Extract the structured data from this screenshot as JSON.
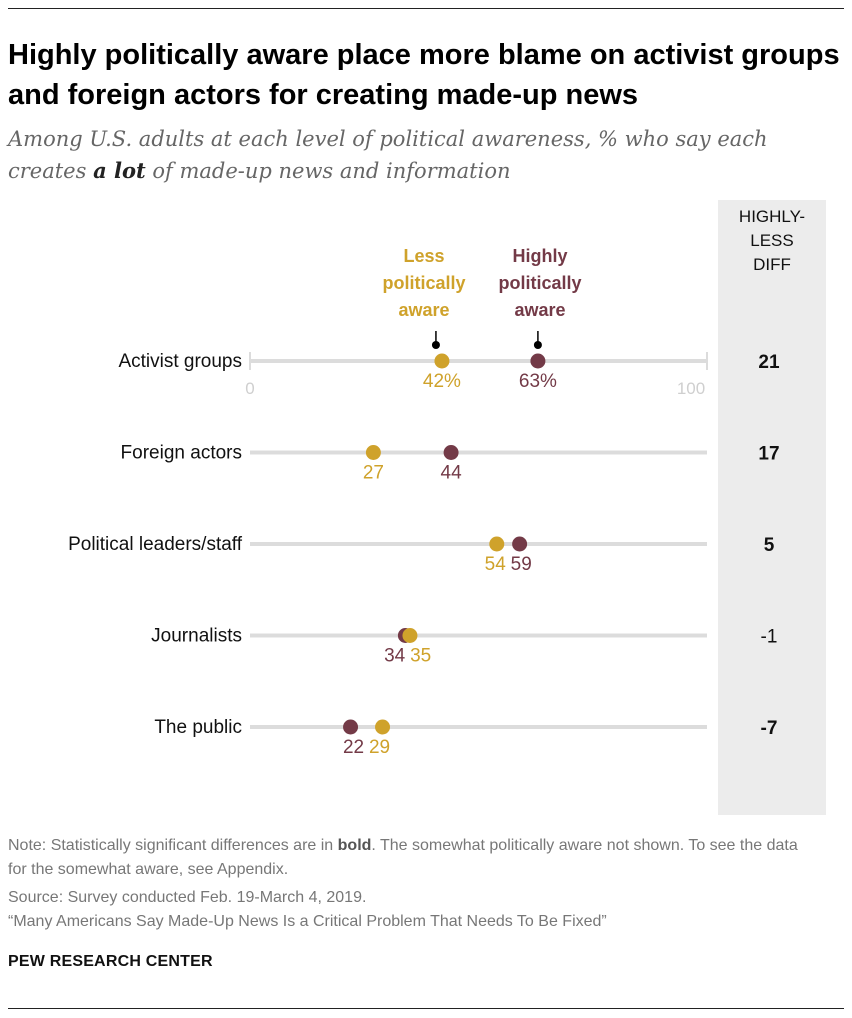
{
  "title": "Highly politically aware place more blame on activist groups and foreign actors for creating made-up news",
  "subtitle_prefix": "Among U.S. adults at each level of political awareness, % who say each creates ",
  "subtitle_emphasis": "a lot",
  "subtitle_suffix": " of made-up news and information",
  "diff_header": "HIGHLY-LESS DIFF",
  "colors": {
    "less": "#cfa22b",
    "high": "#733a47",
    "track": "#dcdcdc",
    "panel": "#ececec"
  },
  "legend": {
    "less": "Less politically aware",
    "high": "Highly politically aware"
  },
  "chart_data": {
    "type": "dot",
    "xlim": [
      0,
      100
    ],
    "axis_tick_labels": [
      "0",
      "100"
    ],
    "categories": [
      "Activist groups",
      "Foreign actors",
      "Political leaders/staff",
      "Journalists",
      "The public"
    ],
    "series": [
      {
        "name": "Less politically aware",
        "values": [
          42,
          27,
          54,
          35,
          29
        ],
        "labels": [
          "42%",
          "27",
          "54",
          "35",
          "29"
        ]
      },
      {
        "name": "Highly politically aware",
        "values": [
          63,
          44,
          59,
          34,
          22
        ],
        "labels": [
          "63%",
          "44",
          "59",
          "34",
          "22"
        ]
      }
    ],
    "diff": [
      "21",
      "17",
      "5",
      "-1",
      "-7"
    ],
    "diff_significant": [
      true,
      true,
      true,
      false,
      true
    ]
  },
  "notes": {
    "note_prefix": "Note: Statistically significant differences are in ",
    "note_bold": "bold",
    "note_suffix": ". The somewhat politically aware not shown. To see the data for the somewhat aware, see Appendix.",
    "source": "Source: Survey conducted Feb. 19-March 4, 2019.",
    "report": "“Many Americans Say Made-Up News Is a Critical Problem That Needs To Be Fixed”"
  },
  "brand": "PEW RESEARCH CENTER"
}
